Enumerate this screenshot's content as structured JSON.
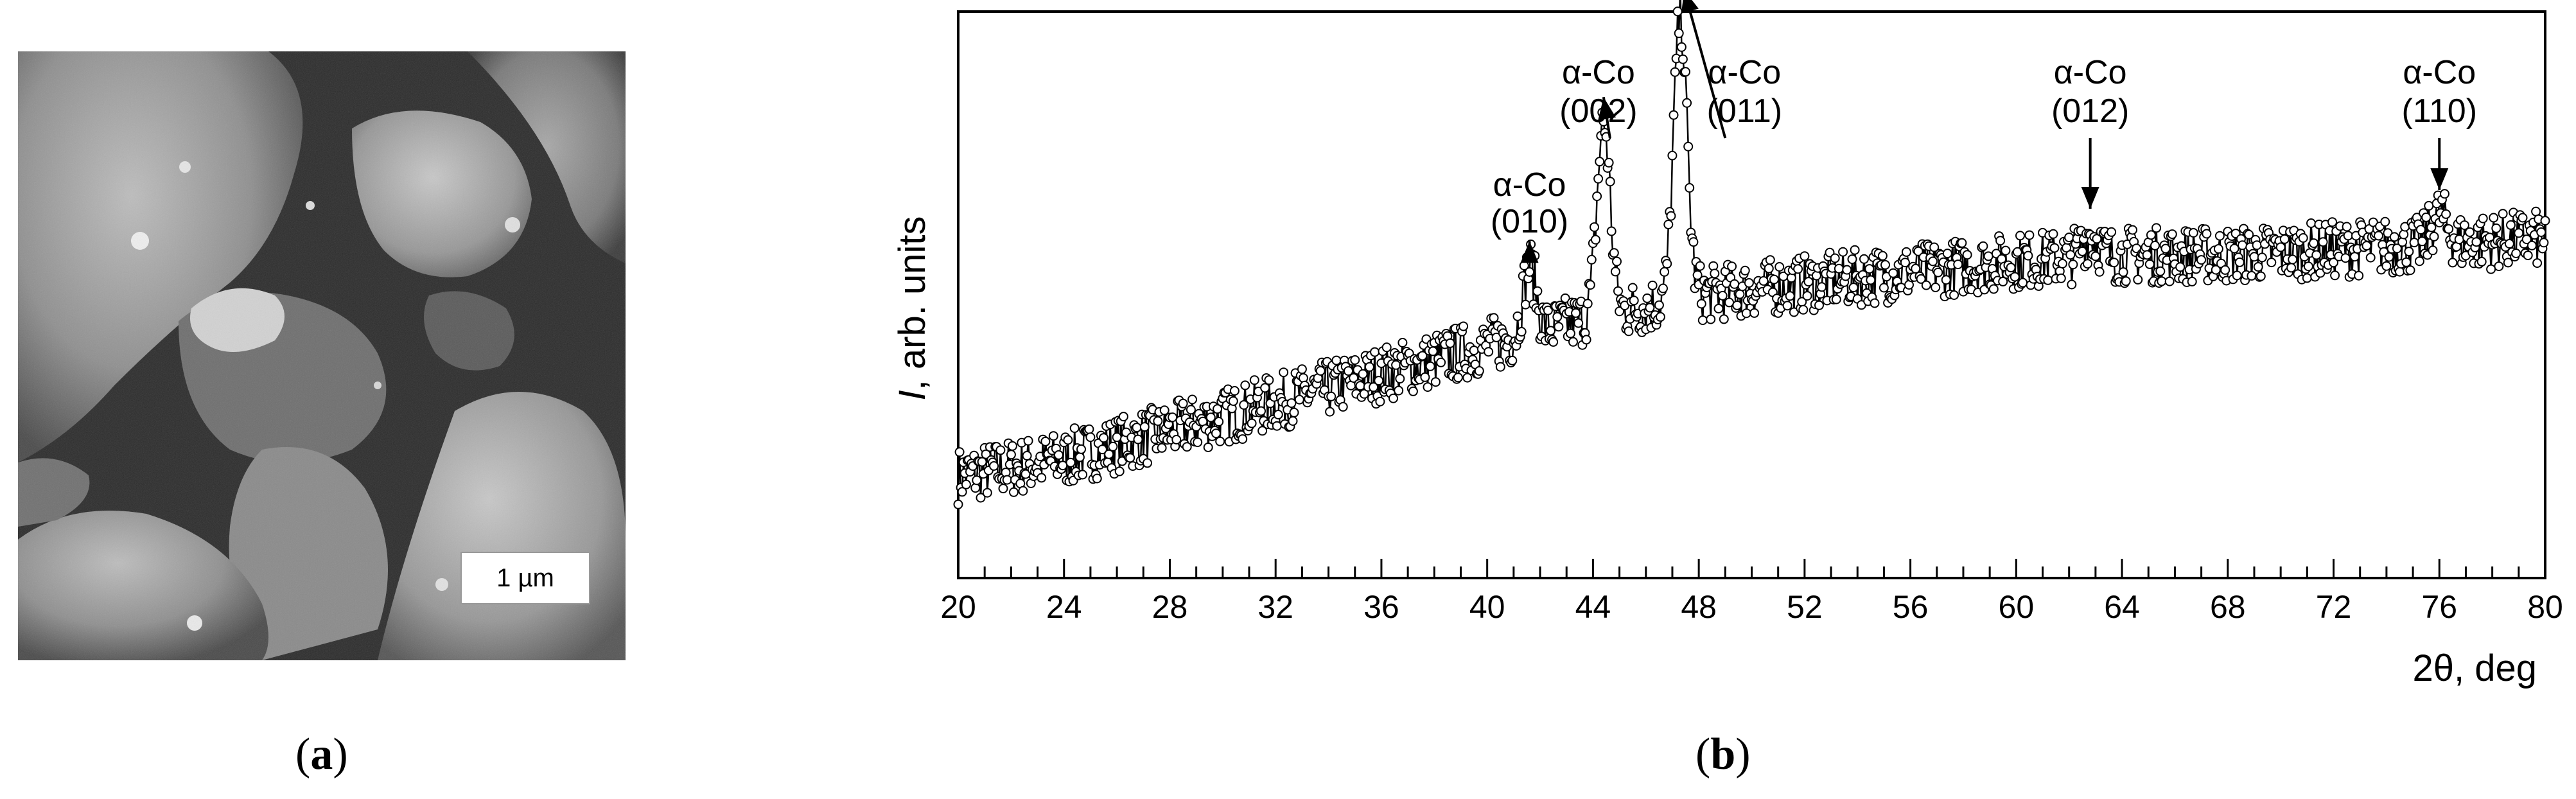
{
  "panels": {
    "a": {
      "label": "(a)",
      "bold_letter": "a",
      "scale_bar": "1 µm"
    },
    "b": {
      "label": "(b)",
      "bold_letter": "b"
    }
  },
  "chart_data": {
    "type": "scatter",
    "xlabel": "2θ, deg",
    "ylabel_italic": "I",
    "ylabel_rest": ", arb. units",
    "xlim": [
      20,
      80
    ],
    "ylim": [
      0,
      100
    ],
    "x_tick_labels": [
      20,
      24,
      28,
      32,
      36,
      40,
      44,
      48,
      52,
      56,
      60,
      64,
      68,
      72,
      76,
      80
    ],
    "x_minor_step": 1,
    "y_ticks_shown": false,
    "series_style": "connected open circles",
    "background_trend": [
      [
        20,
        18
      ],
      [
        24,
        21
      ],
      [
        28,
        26
      ],
      [
        32,
        31
      ],
      [
        36,
        36
      ],
      [
        40,
        41
      ],
      [
        44,
        46
      ],
      [
        48,
        50
      ],
      [
        52,
        52
      ],
      [
        56,
        54
      ],
      [
        60,
        56
      ],
      [
        64,
        57
      ],
      [
        68,
        57
      ],
      [
        72,
        58
      ],
      [
        76,
        59
      ],
      [
        80,
        60
      ]
    ],
    "noise_amplitude": 5,
    "peaks": [
      {
        "x": 41.6,
        "height": 12,
        "width": 0.25
      },
      {
        "x": 44.4,
        "height": 34,
        "width": 0.25
      },
      {
        "x": 47.3,
        "height": 50,
        "width": 0.25
      },
      {
        "x": 62.8,
        "height": 4,
        "width": 0.3
      },
      {
        "x": 76.0,
        "height": 5,
        "width": 0.3
      }
    ],
    "annotations": [
      {
        "phase": "α-Co",
        "hkl": "(010)",
        "x": 41.6
      },
      {
        "phase": "α-Co",
        "hkl": "(002)",
        "x": 44.4
      },
      {
        "phase": "α-Co",
        "hkl": "(011)",
        "x": 47.3
      },
      {
        "phase": "α-Co",
        "hkl": "(012)",
        "x": 62.8
      },
      {
        "phase": "α-Co",
        "hkl": "(110)",
        "x": 76.0
      }
    ]
  }
}
